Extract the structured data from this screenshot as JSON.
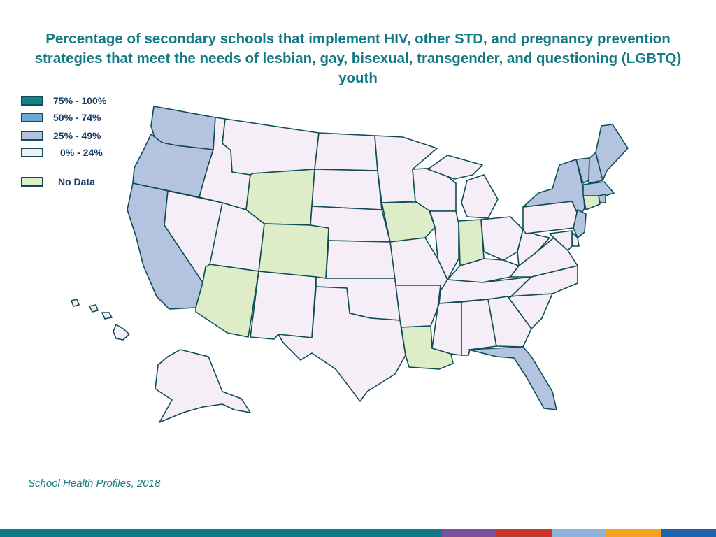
{
  "title": "Percentage of secondary schools that implement HIV, other STD, and pregnancy prevention strategies that meet the needs of lesbian, gay, bisexual, transgender, and questioning (LGBTQ) youth",
  "legend": [
    {
      "label": "75% - 100%",
      "color": "#147f87"
    },
    {
      "label": "50% - 74%",
      "color": "#6ea9d2"
    },
    {
      "label": "25% - 49%",
      "color": "#b4c3e0"
    },
    {
      "label": "0% - 24%",
      "color": "#f5eef7"
    },
    {
      "label": "No Data",
      "color": "#ddedc8"
    }
  ],
  "categories": {
    "high": "#147f87",
    "mid": "#6ea9d2",
    "low": "#b4c3e0",
    "lowest": "#f5eef7",
    "nodata": "#ddedc8"
  },
  "states": {
    "WA": "low",
    "OR": "low",
    "CA": "low",
    "NV": "lowest",
    "ID": "lowest",
    "MT": "lowest",
    "WY": "nodata",
    "UT": "lowest",
    "AZ": "nodata",
    "CO": "nodata",
    "NM": "lowest",
    "ND": "lowest",
    "SD": "lowest",
    "NE": "lowest",
    "KS": "lowest",
    "OK": "lowest",
    "TX": "lowest",
    "MN": "lowest",
    "IA": "nodata",
    "MO": "lowest",
    "AR": "lowest",
    "LA": "nodata",
    "WI": "lowest",
    "IL": "lowest",
    "MI": "lowest",
    "IN": "nodata",
    "OH": "lowest",
    "KY": "lowest",
    "TN": "lowest",
    "MS": "lowest",
    "AL": "lowest",
    "GA": "lowest",
    "FL": "low",
    "SC": "lowest",
    "NC": "lowest",
    "VA": "lowest",
    "WV": "lowest",
    "PA": "lowest",
    "NY": "low",
    "VT": "low",
    "NH": "low",
    "ME": "low",
    "MA": "low",
    "RI": "low",
    "CT": "nodata",
    "NJ": "low",
    "DE": "lowest",
    "MD": "lowest",
    "AK": "lowest",
    "HI": "lowest"
  },
  "source": "School Health Profiles, 2018",
  "footer_colors": [
    "#0f7a84",
    "#7a4f9b",
    "#c8372d",
    "#8fb4db",
    "#f3a521",
    "#1f63ad"
  ]
}
